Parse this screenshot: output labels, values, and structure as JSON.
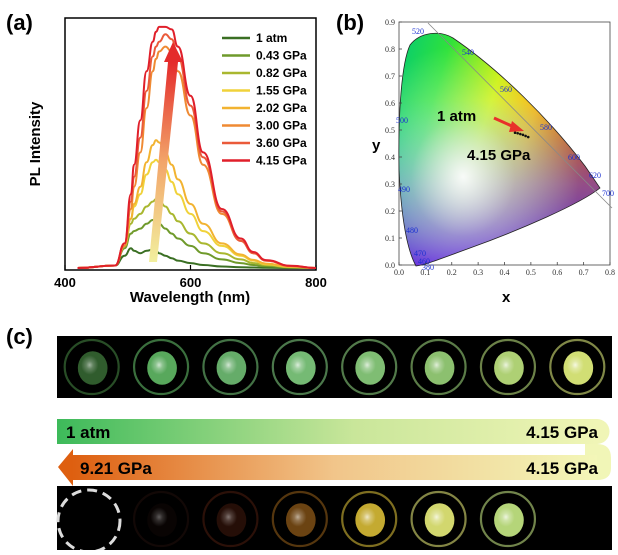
{
  "panel_labels": {
    "a": "(a)",
    "b": "(b)",
    "c": "(c)"
  },
  "colors": {
    "spectrum_line": "#c9c23a",
    "cie_arrow": "#e8312a",
    "compress_gradient": [
      "#3dba5a",
      "#f0f5b6"
    ],
    "decompress_gradient": [
      "#f3f7b8",
      "#de5f10"
    ]
  },
  "chart_data": [
    {
      "type": "line",
      "title": "",
      "xlabel": "Wavelength (nm)",
      "ylabel": "PL Intensity",
      "xlim": [
        400,
        800
      ],
      "ylim": [
        0,
        1
      ],
      "xticks": [
        "400",
        "600",
        "800"
      ],
      "grid": false,
      "legend_position": "top-right",
      "x": [
        420,
        480,
        495,
        505,
        510,
        520,
        530,
        540,
        545,
        550,
        560,
        570,
        580,
        600,
        620,
        650,
        680,
        700,
        720,
        760,
        800
      ],
      "series": [
        {
          "name": "1 atm",
          "color": "#3a6f23",
          "values": [
            0,
            0.01,
            0.05,
            0.08,
            0.07,
            0.06,
            0.07,
            0.075,
            0.07,
            0.06,
            0.05,
            0.04,
            0.03,
            0.02,
            0.012,
            0.006,
            0.003,
            0.002,
            0.001,
            0,
            0
          ]
        },
        {
          "name": "0.43 GPa",
          "color": "#6f9a2b",
          "values": [
            0,
            0.01,
            0.08,
            0.14,
            0.15,
            0.16,
            0.18,
            0.195,
            0.19,
            0.18,
            0.16,
            0.14,
            0.12,
            0.09,
            0.06,
            0.035,
            0.02,
            0.012,
            0.007,
            0.002,
            0
          ]
        },
        {
          "name": "0.82 GPa",
          "color": "#a9b72f",
          "values": [
            0,
            0.01,
            0.09,
            0.18,
            0.2,
            0.22,
            0.25,
            0.27,
            0.28,
            0.275,
            0.25,
            0.22,
            0.19,
            0.14,
            0.1,
            0.06,
            0.035,
            0.02,
            0.012,
            0.003,
            0
          ]
        },
        {
          "name": "1.55 GPa",
          "color": "#f0d23a",
          "values": [
            0,
            0.01,
            0.09,
            0.2,
            0.25,
            0.3,
            0.38,
            0.43,
            0.44,
            0.43,
            0.4,
            0.35,
            0.3,
            0.22,
            0.15,
            0.09,
            0.05,
            0.03,
            0.015,
            0.004,
            0
          ]
        },
        {
          "name": "2.02 GPa",
          "color": "#f2b331",
          "values": [
            0,
            0.01,
            0.09,
            0.2,
            0.26,
            0.33,
            0.43,
            0.5,
            0.52,
            0.51,
            0.47,
            0.42,
            0.36,
            0.26,
            0.18,
            0.1,
            0.055,
            0.033,
            0.018,
            0.005,
            0
          ]
        },
        {
          "name": "3.00 GPa",
          "color": "#ef8a33",
          "values": [
            0,
            0.01,
            0.09,
            0.24,
            0.33,
            0.47,
            0.65,
            0.8,
            0.85,
            0.88,
            0.9,
            0.88,
            0.8,
            0.62,
            0.42,
            0.22,
            0.11,
            0.06,
            0.03,
            0.008,
            0
          ]
        },
        {
          "name": "3.60 GPa",
          "color": "#ea5a3a",
          "values": [
            0,
            0.01,
            0.1,
            0.27,
            0.37,
            0.53,
            0.72,
            0.86,
            0.9,
            0.92,
            0.95,
            0.93,
            0.86,
            0.66,
            0.45,
            0.23,
            0.11,
            0.06,
            0.03,
            0.008,
            0
          ]
        },
        {
          "name": "4.15 GPa",
          "color": "#e01f2a",
          "values": [
            0,
            0.01,
            0.1,
            0.3,
            0.42,
            0.6,
            0.8,
            0.92,
            0.96,
            0.98,
            0.98,
            0.97,
            0.9,
            0.7,
            0.47,
            0.24,
            0.12,
            0.065,
            0.032,
            0.009,
            0
          ]
        }
      ]
    },
    {
      "type": "scatter",
      "title": "",
      "xlabel": "x",
      "ylabel": "y",
      "xlim": [
        0,
        0.8
      ],
      "ylim": [
        0,
        0.9
      ],
      "xticks": [
        "0.0",
        "0.1",
        "0.2",
        "0.3",
        "0.4",
        "0.5",
        "0.6",
        "0.7",
        "0.8"
      ],
      "yticks": [
        "0.0",
        "0.1",
        "0.2",
        "0.3",
        "0.4",
        "0.5",
        "0.6",
        "0.7",
        "0.8",
        "0.9"
      ],
      "wavelength_labels": [
        "520",
        "540",
        "560",
        "580",
        "600",
        "620",
        "700",
        "500",
        "490",
        "480",
        "470",
        "460",
        "380"
      ],
      "annotations": [
        "1 atm",
        "4.15 GPa"
      ],
      "points": {
        "x": [
          0.44,
          0.45,
          0.46,
          0.47,
          0.48,
          0.49
        ],
        "y": [
          0.49,
          0.488,
          0.485,
          0.482,
          0.478,
          0.474
        ]
      },
      "arrow": {
        "from": [
          0.44,
          0.47
        ],
        "to": [
          0.53,
          0.42
        ]
      }
    }
  ],
  "photo_rows": {
    "compression": [
      {
        "color": "#5fb85a",
        "brightness": 0.5
      },
      {
        "color": "#6ed273",
        "brightness": 0.8
      },
      {
        "color": "#7ed783",
        "brightness": 0.8
      },
      {
        "color": "#89db88",
        "brightness": 0.85
      },
      {
        "color": "#95de87",
        "brightness": 0.85
      },
      {
        "color": "#a5e283",
        "brightness": 0.85
      },
      {
        "color": "#c1e781",
        "brightness": 0.9
      },
      {
        "color": "#dcea7a",
        "brightness": 0.95
      }
    ],
    "decompression": [
      {
        "color": "#3a1c14",
        "brightness": 0.15
      },
      {
        "color": "#7a2d18",
        "brightness": 0.3
      },
      {
        "color": "#c27a20",
        "brightness": 0.55
      },
      {
        "color": "#e6c83a",
        "brightness": 0.85
      },
      {
        "color": "#e9ee7a",
        "brightness": 0.9
      },
      {
        "color": "#c9ec86",
        "brightness": 0.9
      }
    ]
  },
  "pressure_banners": {
    "compress_start": "1 atm",
    "compress_end": "4.15 GPa",
    "decompress_end": "9.21 GPa",
    "decompress_start": "4.15 GPa"
  }
}
